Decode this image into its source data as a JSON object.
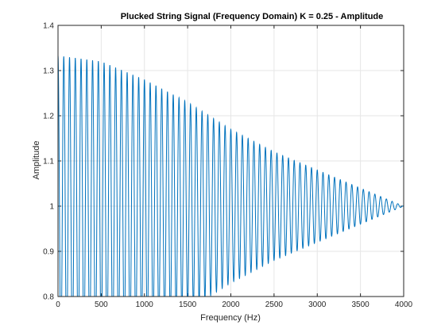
{
  "chart_data": {
    "type": "line",
    "title": "Plucked String Signal (Frequency Domain) K = 0.25 - Amplitude",
    "xlabel": "Frequency (Hz)",
    "ylabel": "Amplitude",
    "xlim": [
      0,
      4000
    ],
    "ylim": [
      0.8,
      1.4
    ],
    "xticks": [
      0,
      500,
      1000,
      1500,
      2000,
      2500,
      3000,
      3500,
      4000
    ],
    "xtick_labels": [
      "0",
      "500",
      "1000",
      "1500",
      "2000",
      "2500",
      "3000",
      "3500",
      "4000"
    ],
    "yticks": [
      0.8,
      0.9,
      1.0,
      1.1,
      1.2,
      1.3,
      1.4
    ],
    "ytick_labels": [
      "0.8",
      "0.9",
      "1",
      "1.1",
      "1.2",
      "1.3",
      "1.4"
    ],
    "grid": true,
    "series": [
      {
        "color": "#0072BD",
        "description": "oscillation envelope (peak values)",
        "x": [
          0,
          500,
          1000,
          1500,
          2000,
          2500,
          3000,
          3500,
          3750,
          4000
        ],
        "values": [
          1.333,
          1.32,
          1.28,
          1.23,
          1.17,
          1.12,
          1.08,
          1.04,
          1.02,
          1.0
        ],
        "cycles_per_axis": 60
      }
    ]
  }
}
